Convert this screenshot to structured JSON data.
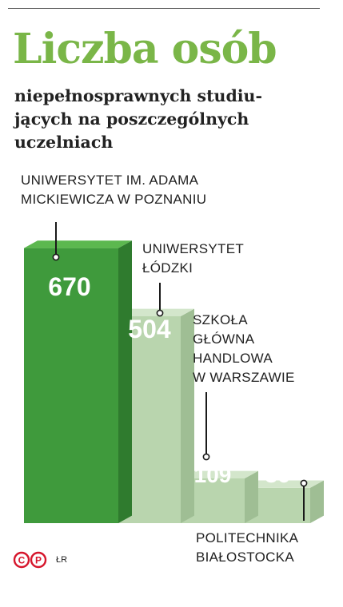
{
  "header": {
    "title": "Liczba osób",
    "subtitle_lines": [
      "niepełnosprawnych studiu-",
      "jących na poszczególnych",
      "uczelniach"
    ]
  },
  "chart_data": {
    "type": "bar",
    "categories": [
      "UNIWERSYTET IM. ADAMA MICKIEWICZA W POZNANIU",
      "UNIWERSYTET ŁÓDZKI",
      "SZKOŁA GŁÓWNA HANDLOWA W WARSZAWIE",
      "POLITECHNIKA BIAŁOSTOCKA"
    ],
    "values": [
      670,
      504,
      109,
      86
    ],
    "value_labels": [
      "670",
      "504",
      "109",
      "86"
    ],
    "category_label_lines": [
      [
        "UNIWERSYTET IM. ADAMA",
        "MICKIEWICZA W POZNANIU"
      ],
      [
        "UNIWERSYTET",
        "ŁÓDZKI"
      ],
      [
        "SZKOŁA",
        "GŁÓWNA",
        "HANDLOWA",
        "W WARSZAWIE"
      ],
      [
        "POLITECHNIKA",
        "BIAŁOSTOCKA"
      ]
    ],
    "colors": {
      "first_bar_front": "#3f9a3c",
      "first_bar_top": "#5cb84f",
      "first_bar_side": "#2f7b2e",
      "other_bar_front": "#b9d5ae",
      "other_bar_top": "#d3e6cb",
      "other_bar_side": "#9fbe94"
    }
  },
  "footer": {
    "credit": "ŁR",
    "logo_letters": [
      "C",
      "P"
    ],
    "logo_color": "#d6162c"
  }
}
